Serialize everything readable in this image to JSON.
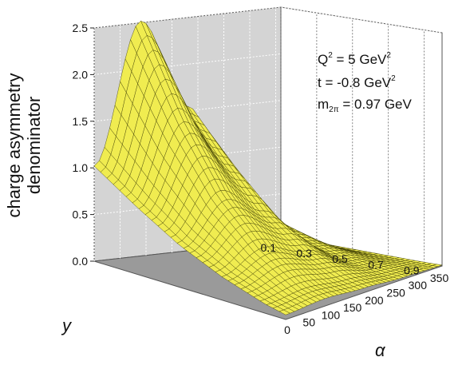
{
  "chart_data": {
    "type": "surface",
    "zlabel": [
      "charge asymmetry",
      "denominator"
    ],
    "ylabel": "y",
    "xlabel": "α",
    "zlim": [
      0.0,
      2.5
    ],
    "z_ticks": [
      "0.0",
      "0.5",
      "1.0",
      "1.5",
      "2.0",
      "2.5"
    ],
    "y_ticks": [
      "0.1",
      "0.3",
      "0.5",
      "0.7",
      "0.9"
    ],
    "alpha_ticks": [
      "0",
      "50",
      "100",
      "150",
      "200",
      "250",
      "300",
      "350"
    ],
    "y_range": [
      0.1,
      1.0
    ],
    "alpha_range": [
      0,
      360
    ],
    "grid": true,
    "surface_color": "#f0ec50",
    "mesh_color": "#3a3a00",
    "annotations": [
      {
        "name": "q2",
        "main": "Q",
        "sup1": "2",
        "rest": " = 5 GeV",
        "sup2": "2"
      },
      {
        "name": "t",
        "main": "t = -0.8 GeV",
        "sup": "2"
      },
      {
        "name": "m",
        "main": "m",
        "sub": "2π",
        "rest": " = 0.97 GeV"
      }
    ],
    "profiles": {
      "description_free": true,
      "alpha_0": [
        [
          0.1,
          1.02
        ],
        [
          0.3,
          0.72
        ],
        [
          0.5,
          0.45
        ],
        [
          0.7,
          0.25
        ],
        [
          0.9,
          0.1
        ],
        [
          1.0,
          0.05
        ]
      ],
      "alpha_90": [
        [
          0.1,
          2.52
        ],
        [
          0.3,
          1.6
        ],
        [
          0.5,
          0.9
        ],
        [
          0.7,
          0.45
        ],
        [
          0.9,
          0.15
        ],
        [
          1.0,
          0.08
        ]
      ],
      "alpha_180": [
        [
          0.1,
          1.55
        ],
        [
          0.3,
          1.05
        ],
        [
          0.5,
          0.6
        ],
        [
          0.7,
          0.3
        ],
        [
          0.9,
          0.1
        ],
        [
          1.0,
          0.05
        ]
      ],
      "alpha_270": [
        [
          0.1,
          0.55
        ],
        [
          0.3,
          0.35
        ],
        [
          0.5,
          0.2
        ],
        [
          0.7,
          0.1
        ],
        [
          0.9,
          0.04
        ],
        [
          1.0,
          0.02
        ]
      ],
      "alpha_360": [
        [
          0.1,
          0.05
        ],
        [
          0.3,
          0.04
        ],
        [
          0.5,
          0.03
        ],
        [
          0.7,
          0.02
        ],
        [
          0.9,
          0.01
        ],
        [
          1.0,
          0.01
        ]
      ]
    }
  }
}
